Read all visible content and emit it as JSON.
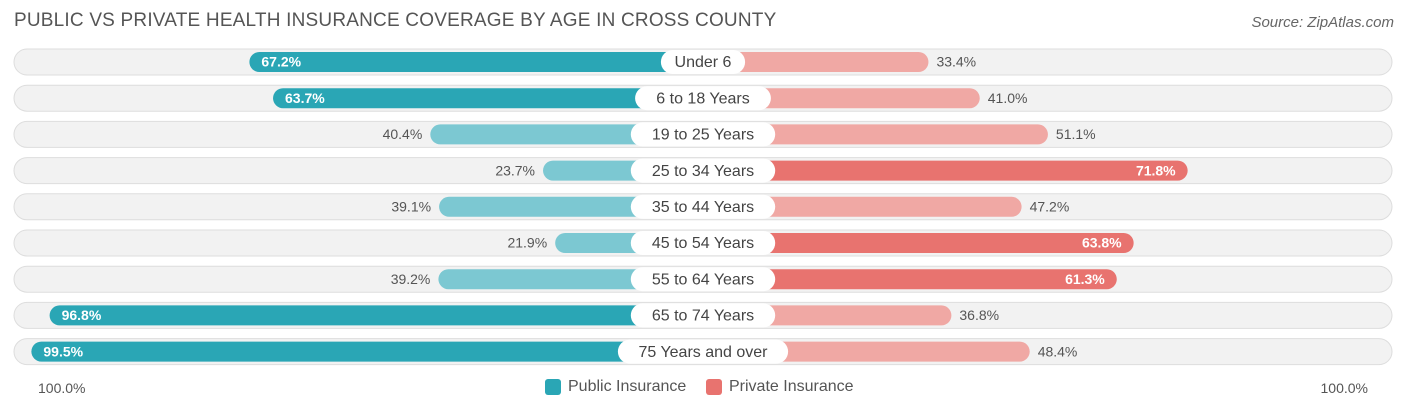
{
  "title": "PUBLIC VS PRIVATE HEALTH INSURANCE COVERAGE BY AGE IN CROSS COUNTY",
  "source": "Source: ZipAtlas.com",
  "colors": {
    "public_strong": "#2aa6b5",
    "public_light": "#7cc8d2",
    "private_strong": "#e8736f",
    "private_light": "#f0a8a4",
    "row_bg": "#f2f2f2",
    "row_border": "#dddddd"
  },
  "chart_data": {
    "type": "bar",
    "orientation": "diverging-horizontal",
    "categories": [
      "Under 6",
      "6 to 18 Years",
      "19 to 25 Years",
      "25 to 34 Years",
      "35 to 44 Years",
      "45 to 54 Years",
      "55 to 64 Years",
      "65 to 74 Years",
      "75 Years and over"
    ],
    "series": [
      {
        "name": "Public Insurance",
        "values": [
          67.2,
          63.7,
          40.4,
          23.7,
          39.1,
          21.9,
          39.2,
          96.8,
          99.5
        ],
        "labels": [
          "67.2%",
          "63.7%",
          "40.4%",
          "23.7%",
          "39.1%",
          "21.9%",
          "39.2%",
          "96.8%",
          "99.5%"
        ]
      },
      {
        "name": "Private Insurance",
        "values": [
          33.4,
          41.0,
          51.1,
          71.8,
          47.2,
          63.8,
          61.3,
          36.8,
          48.4
        ],
        "labels": [
          "33.4%",
          "41.0%",
          "51.1%",
          "71.8%",
          "47.2%",
          "63.8%",
          "61.3%",
          "36.8%",
          "48.4%"
        ]
      }
    ],
    "xlim": [
      -100,
      100
    ],
    "axis_left_label": "100.0%",
    "axis_right_label": "100.0%",
    "legend": [
      "Public Insurance",
      "Private Insurance"
    ]
  }
}
